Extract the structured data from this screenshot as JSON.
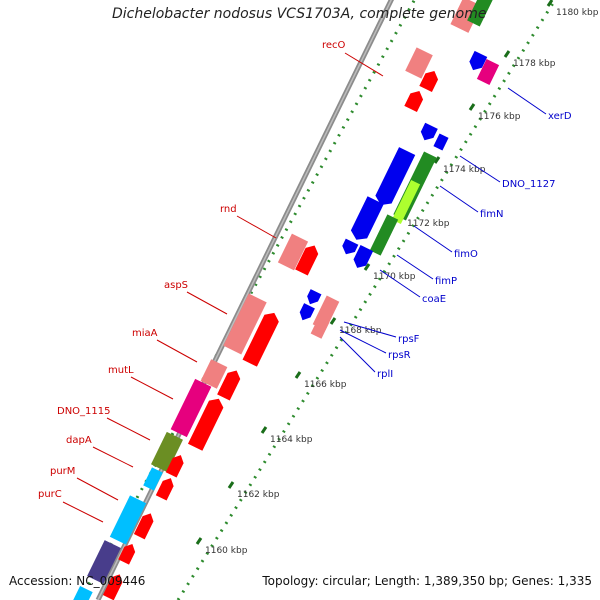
{
  "title": "Dichelobacter nodosus VCS1703A, complete genome",
  "footer": {
    "accession_label": "Accession:",
    "accession": "NC_009446",
    "topology_text": "Topology: circular; Length: 1,389,350 bp; Genes: 1,335"
  },
  "colors": {
    "backbone": "#8c8c8c",
    "tick_major": "#1a6e1a",
    "tick_minor": "#2e8b2e",
    "label_red": "#cc0000",
    "label_blue": "#0000cc",
    "gene_red": "#ff0000",
    "gene_pink": "#f08080",
    "gene_blue": "#0000ee",
    "gene_magenta": "#e6007e",
    "gene_olive": "#6b8e23",
    "gene_cyan": "#00bfff",
    "gene_navy": "#483d8b",
    "gene_green": "#228b22",
    "gene_lime": "#adff2f"
  },
  "scale_labels": [
    "1160 kbp",
    "1162 kbp",
    "1164 kbp",
    "1166 kbp",
    "1168 kbp",
    "1170 kbp",
    "1172 kbp",
    "1174 kbp",
    "1176 kbp",
    "1178 kbp",
    "1180 kbp"
  ],
  "gene_labels_left": [
    "recO",
    "rnd",
    "aspS",
    "miaA",
    "mutL",
    "DNO_1115",
    "dapA",
    "purM",
    "purC"
  ],
  "gene_labels_right": [
    "xerD",
    "DNO_1127",
    "fimN",
    "fimO",
    "fimP",
    "coaE",
    "rpsF",
    "rpsR",
    "rplI"
  ]
}
